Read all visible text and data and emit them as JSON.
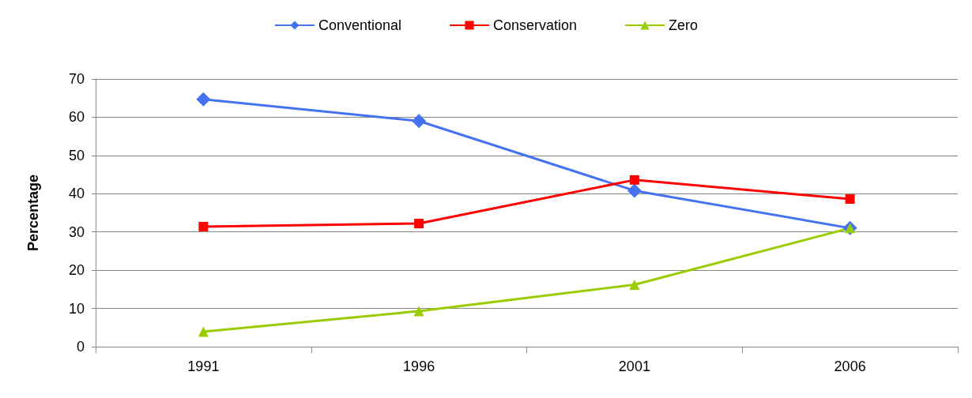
{
  "chart_data": {
    "type": "line",
    "ylabel": "Percentage",
    "categories": [
      "1991",
      "1996",
      "2001",
      "2006"
    ],
    "series": [
      {
        "name": "Conventional",
        "color": "#4472f0",
        "marker": "diamond",
        "values": [
          64.7,
          59,
          40.8,
          31
        ]
      },
      {
        "name": "Conservation",
        "color": "#ff0000",
        "marker": "square",
        "values": [
          31.4,
          32.2,
          43.6,
          38.6
        ]
      },
      {
        "name": "Zero",
        "color": "#9acd00",
        "marker": "triangle",
        "values": [
          3.9,
          9.3,
          16.2,
          31
        ]
      }
    ],
    "ylim": [
      0,
      70
    ],
    "yticks": [
      0,
      10,
      20,
      30,
      40,
      50,
      60,
      70
    ],
    "grid": "y",
    "legend": "top"
  }
}
